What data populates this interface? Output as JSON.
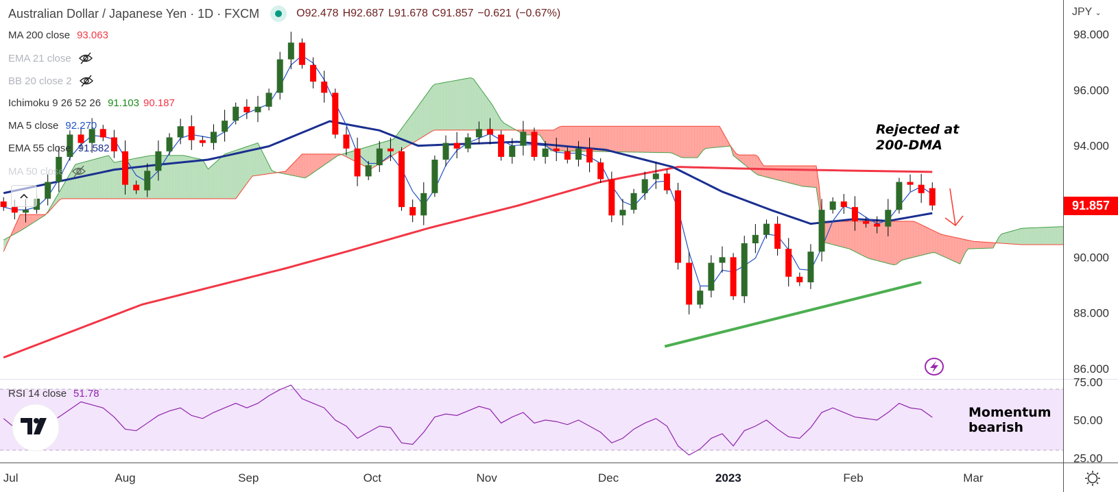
{
  "header": {
    "title": "Australian Dollar / Japanese Yen · 1D · FXCM",
    "ohlc": {
      "o": "O92.478",
      "h": "H92.687",
      "l": "L91.678",
      "c": "C91.857",
      "chg": "−0.621",
      "pct": "(−0.67%)"
    }
  },
  "legend": {
    "ma200": {
      "label": "MA 200 close",
      "value": "93.063",
      "color": "#f23645"
    },
    "ema21": {
      "label": "EMA 21 close"
    },
    "bb": {
      "label": "BB 20 close 2"
    },
    "ichimoku": {
      "label": "Ichimoku 9 26 52 26",
      "value1": "91.103",
      "value2": "90.187"
    },
    "ma5": {
      "label": "MA 5 close",
      "value": "92.270"
    },
    "ema55": {
      "label": "EMA 55 close",
      "value": "91.582"
    },
    "ma50": {
      "label": "MA 50 close"
    }
  },
  "rsi_legend": {
    "label": "RSI 14 close",
    "value": "51.78"
  },
  "axis": {
    "currency": "JPY",
    "last_price": "91.857"
  },
  "annotations": {
    "rejected_line1": "Rejected at",
    "rejected_line2": "200-DMA",
    "momentum_line1": "Momentum",
    "momentum_line2": "bearish"
  },
  "chart_data": {
    "type": "candlestick",
    "symbol": "AUDJPY",
    "interval": "1D",
    "bar_step": 2,
    "closes": [
      91.8,
      91.6,
      91.7,
      92.1,
      92.7,
      93.6,
      94.4,
      94.1,
      94.6,
      94.3,
      93.8,
      92.6,
      92.4,
      93.1,
      93.8,
      94.3,
      94.7,
      94.2,
      94.1,
      94.5,
      94.9,
      95.4,
      95.2,
      95.4,
      95.9,
      97.1,
      97.7,
      96.9,
      96.3,
      95.9,
      94.4,
      93.9,
      92.9,
      93.3,
      93.9,
      93.8,
      91.8,
      91.5,
      92.3,
      93.5,
      94.1,
      93.9,
      94.3,
      94.6,
      94.4,
      93.6,
      94.0,
      94.5,
      93.6,
      93.9,
      93.8,
      93.5,
      93.9,
      93.4,
      92.8,
      91.5,
      91.7,
      92.3,
      92.8,
      93.0,
      92.4,
      89.8,
      88.3,
      88.8,
      89.8,
      90.0,
      88.6,
      90.5,
      90.8,
      91.2,
      90.3,
      89.3,
      89.1,
      90.2,
      91.7,
      92.0,
      91.8,
      91.3,
      91.2,
      91.1,
      91.7,
      92.7,
      92.6,
      92.3,
      91.857
    ],
    "last_bar": {
      "open": 92.478,
      "high": 92.687,
      "low": 91.678,
      "close": 91.857
    },
    "ma200": [
      [
        0,
        86.4
      ],
      [
        25,
        88.3
      ],
      [
        51,
        89.6
      ],
      [
        62,
        90.2
      ],
      [
        77,
        91.05
      ],
      [
        93,
        91.85
      ],
      [
        108,
        92.7
      ],
      [
        122,
        93.24
      ],
      [
        140,
        93.15
      ],
      [
        168,
        93.06
      ]
    ],
    "ema55": [
      [
        0,
        92.3
      ],
      [
        20,
        93.14
      ],
      [
        28,
        93.32
      ],
      [
        37,
        93.5
      ],
      [
        48,
        93.98
      ],
      [
        59,
        94.88
      ],
      [
        68,
        94.55
      ],
      [
        75,
        94.0
      ],
      [
        93,
        94.14
      ],
      [
        109,
        93.85
      ],
      [
        121,
        93.24
      ],
      [
        130,
        92.35
      ],
      [
        139,
        91.68
      ],
      [
        146,
        91.2
      ],
      [
        154,
        91.37
      ],
      [
        160,
        91.3
      ],
      [
        168,
        91.58
      ]
    ],
    "ichimoku_span_a": [
      [
        0,
        90.62
      ],
      [
        3,
        90.94
      ],
      [
        7.7,
        91.53
      ],
      [
        13,
        93.33
      ],
      [
        19,
        93.65
      ],
      [
        20,
        93.4
      ],
      [
        26.6,
        93.65
      ],
      [
        32.6,
        93.65
      ],
      [
        36,
        93.5
      ],
      [
        37,
        93.16
      ],
      [
        40,
        93.7
      ],
      [
        46,
        94.1
      ],
      [
        48.6,
        93.08
      ],
      [
        54.6,
        92.84
      ],
      [
        60.5,
        93.65
      ],
      [
        70.6,
        94.24
      ],
      [
        74.8,
        95.37
      ],
      [
        77.8,
        96.2
      ],
      [
        84.8,
        96.45
      ],
      [
        88.4,
        95.47
      ],
      [
        90.2,
        94.85
      ],
      [
        94.2,
        94.39
      ],
      [
        97,
        94.39
      ],
      [
        98.9,
        93.82
      ],
      [
        120.8,
        93.75
      ],
      [
        122.7,
        93.57
      ],
      [
        125.5,
        93.57
      ],
      [
        126.8,
        93.9
      ],
      [
        131.5,
        93.99
      ],
      [
        132,
        93.65
      ],
      [
        136.3,
        92.96
      ],
      [
        144.6,
        92.54
      ],
      [
        147.2,
        92.5
      ],
      [
        148.1,
        90.55
      ],
      [
        153,
        90.3
      ],
      [
        156.4,
        89.96
      ],
      [
        161.3,
        89.71
      ],
      [
        162.4,
        89.89
      ],
      [
        168.3,
        90.18
      ],
      [
        173,
        89.76
      ],
      [
        174.3,
        90.3
      ],
      [
        179,
        90.33
      ],
      [
        180.3,
        90.82
      ],
      [
        184.2,
        91.04
      ],
      [
        192,
        91.1
      ]
    ],
    "ichimoku_span_b": [
      [
        0,
        90.2
      ],
      [
        3,
        91.53
      ],
      [
        7.7,
        91.53
      ],
      [
        10.3,
        92.1
      ],
      [
        42,
        92.1
      ],
      [
        45,
        92.91
      ],
      [
        51,
        93.08
      ],
      [
        54,
        93.7
      ],
      [
        61,
        93.7
      ],
      [
        66.4,
        93.16
      ],
      [
        77.8,
        94.56
      ],
      [
        99.5,
        94.56
      ],
      [
        100.7,
        94.7
      ],
      [
        129.5,
        94.7
      ],
      [
        131.5,
        93.99
      ],
      [
        132.7,
        93.67
      ],
      [
        136.3,
        93.67
      ],
      [
        137.4,
        93.28
      ],
      [
        147.2,
        93.28
      ],
      [
        148.1,
        91.29
      ],
      [
        164.7,
        91.29
      ],
      [
        169.6,
        90.82
      ],
      [
        175.4,
        90.57
      ],
      [
        184.2,
        90.45
      ],
      [
        192,
        90.45
      ]
    ],
    "trendline": [
      [
        119.6,
        86.8
      ],
      [
        166,
        89.1
      ]
    ],
    "price_ticks": [
      98,
      96,
      94,
      90,
      88,
      86
    ],
    "y_range": [
      86,
      98
    ],
    "time_labels": [
      [
        "Jul",
        1.3
      ],
      [
        "Aug",
        22
      ],
      [
        "Sep",
        44.3
      ],
      [
        "Oct",
        66.7
      ],
      [
        "Nov",
        87.4
      ],
      [
        "Dec",
        109.4
      ],
      [
        "2023",
        131.1
      ],
      [
        "Feb",
        153.7
      ],
      [
        "Mar",
        175.4
      ]
    ],
    "rsi": {
      "period": 14,
      "values": [
        51,
        45,
        40,
        44,
        48,
        52,
        57,
        62,
        60,
        58,
        52,
        44,
        43,
        48,
        53,
        56,
        58,
        53,
        51,
        55,
        58,
        61,
        58,
        61,
        66,
        70,
        73,
        64,
        61,
        58,
        50,
        46,
        38,
        42,
        46,
        45,
        35,
        34,
        42,
        52,
        54,
        53,
        56,
        59,
        57,
        48,
        52,
        55,
        48,
        50,
        49,
        47,
        50,
        46,
        42,
        35,
        38,
        44,
        48,
        51,
        46,
        33,
        27,
        31,
        38,
        41,
        33,
        43,
        46,
        50,
        44,
        39,
        38,
        45,
        55,
        58,
        55,
        52,
        51,
        50,
        55,
        61,
        58,
        57,
        51.78
      ],
      "upper_band": 70,
      "lower_band": 30,
      "ticks": [
        [
          "75.00",
          75
        ],
        [
          "50.00",
          50
        ],
        [
          "25.00",
          25
        ]
      ]
    },
    "colors": {
      "up": "#2e6b2a",
      "down": "#ff0000",
      "ma200": "#f23645",
      "ema55": "#1a2f8f",
      "ma5": "#2151c7",
      "cloud_up": "#a5d6a7",
      "cloud_down": "#ff8a80",
      "trend": "#4caf50",
      "rsi": "#8e24aa"
    }
  }
}
